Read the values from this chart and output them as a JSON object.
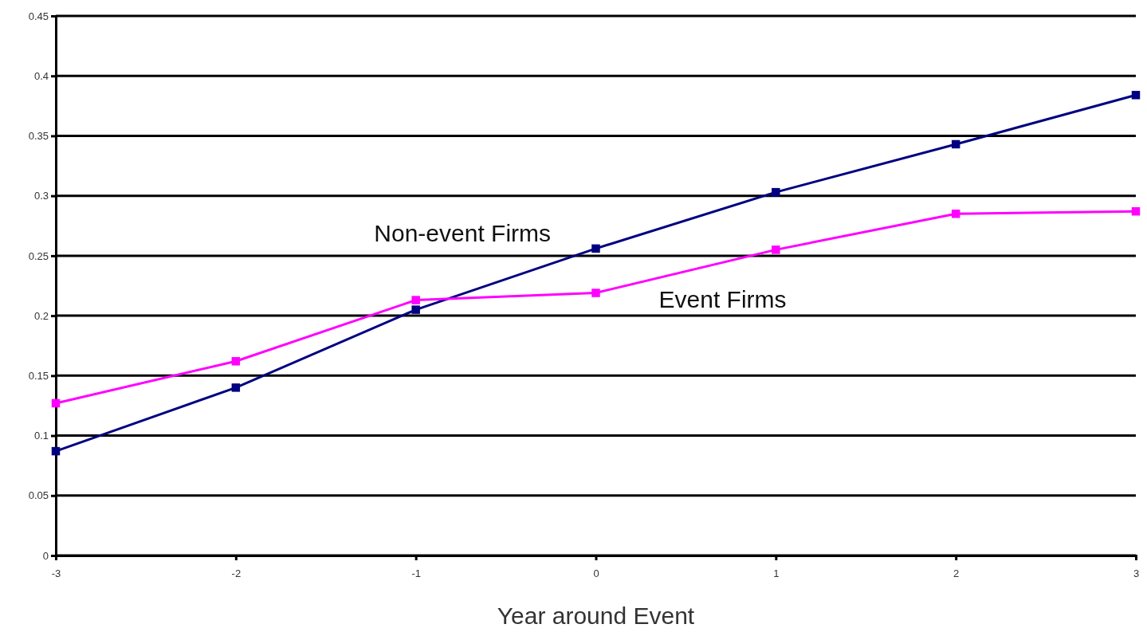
{
  "chart_data": {
    "type": "line",
    "xlabel": "Year around Event",
    "x": [
      -3,
      -2,
      -1,
      0,
      1,
      2,
      3
    ],
    "series": [
      {
        "name": "Non-event Firms",
        "color": "#000080",
        "values": [
          0.087,
          0.14,
          0.205,
          0.256,
          0.303,
          0.343,
          0.384
        ]
      },
      {
        "name": "Event Firms",
        "color": "#ff00ff",
        "values": [
          0.127,
          0.162,
          0.213,
          0.219,
          0.255,
          0.285,
          0.287
        ]
      }
    ],
    "xlim": [
      -3,
      3
    ],
    "xticks": [
      -3,
      -2,
      -1,
      0,
      1,
      2,
      3
    ],
    "ylim": [
      0,
      0.45
    ],
    "yticks": [
      0,
      0.05,
      0.1,
      0.15,
      0.2,
      0.25,
      0.3,
      0.35,
      0.4,
      0.45
    ],
    "grid": "y",
    "legend": false,
    "marker": "square",
    "line_style": "solid"
  }
}
